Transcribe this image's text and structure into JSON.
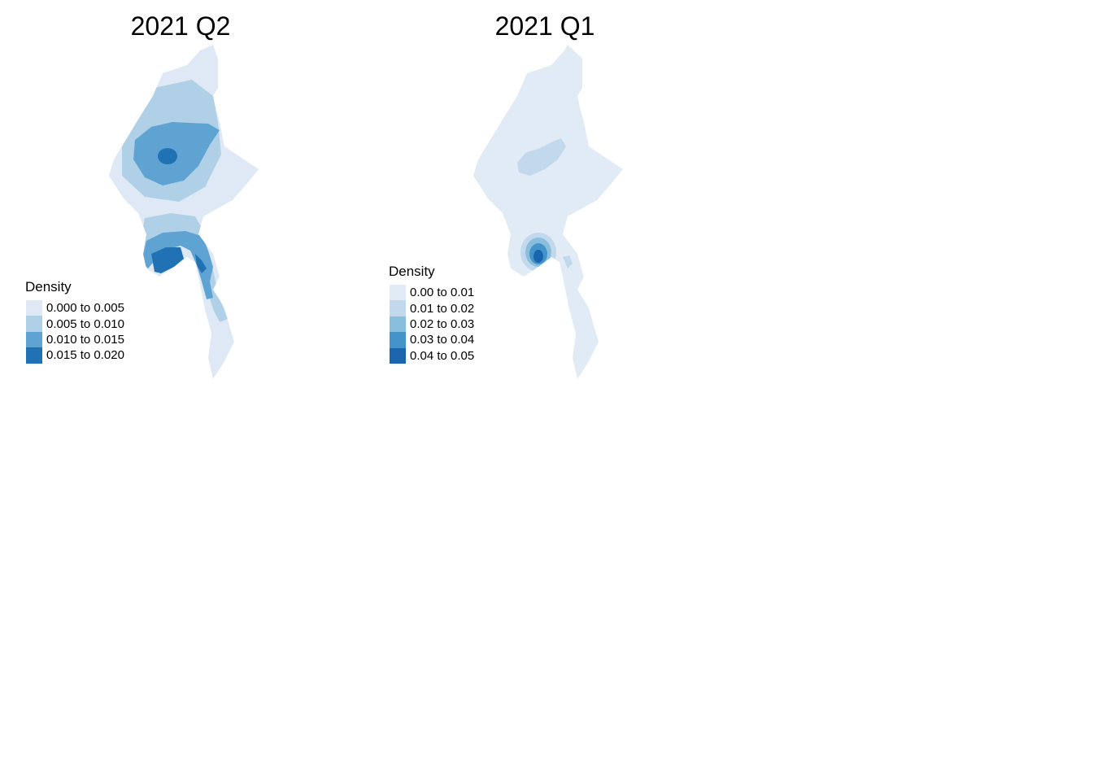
{
  "panels": [
    {
      "title": "2021 Q2",
      "legend": {
        "title": "Density",
        "entries": [
          {
            "label": "0.000 to 0.005",
            "color": "#dfe9f5"
          },
          {
            "label": "0.005 to 0.010",
            "color": "#afd0e6"
          },
          {
            "label": "0.010 to 0.015",
            "color": "#5fa3d3"
          },
          {
            "label": "0.015 to 0.020",
            "color": "#2171b5"
          }
        ]
      }
    },
    {
      "title": "2021 Q1",
      "legend": {
        "title": "Density",
        "entries": [
          {
            "label": "0.00 to 0.01",
            "color": "#e1ebf6"
          },
          {
            "label": "0.01 to 0.02",
            "color": "#c2d8ec"
          },
          {
            "label": "0.02 to 0.03",
            "color": "#8abedd"
          },
          {
            "label": "0.03 to 0.04",
            "color": "#4493c9"
          },
          {
            "label": "0.04 to 0.05",
            "color": "#1b64ae"
          }
        ]
      }
    }
  ]
}
